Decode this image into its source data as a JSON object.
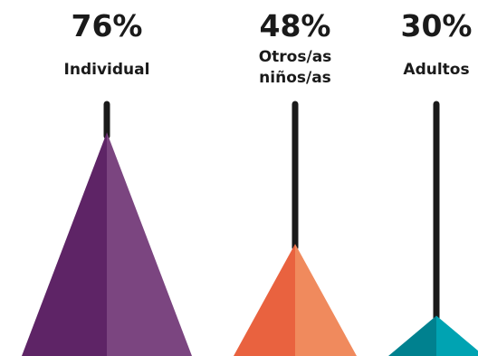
{
  "chart_data": {
    "type": "bar",
    "categories": [
      "Individual",
      "Otros/as niños/as",
      "Adultos"
    ],
    "values": [
      76,
      48,
      30
    ],
    "value_labels": [
      "76%",
      "48%",
      "30%"
    ],
    "label_lines": [
      [
        "Individual"
      ],
      [
        "Otros/as",
        "niños/as"
      ],
      [
        "Adultos"
      ]
    ],
    "ylim": [
      0,
      100
    ],
    "colors": [
      {
        "dark": "#5e2466",
        "light": "#7b4580"
      },
      {
        "dark": "#e9623f",
        "light": "#f08a5d"
      },
      {
        "dark": "#00818f",
        "light": "#00a3b2"
      }
    ],
    "stem_color": "#1a1a1a",
    "grid": false,
    "legend": "none"
  }
}
